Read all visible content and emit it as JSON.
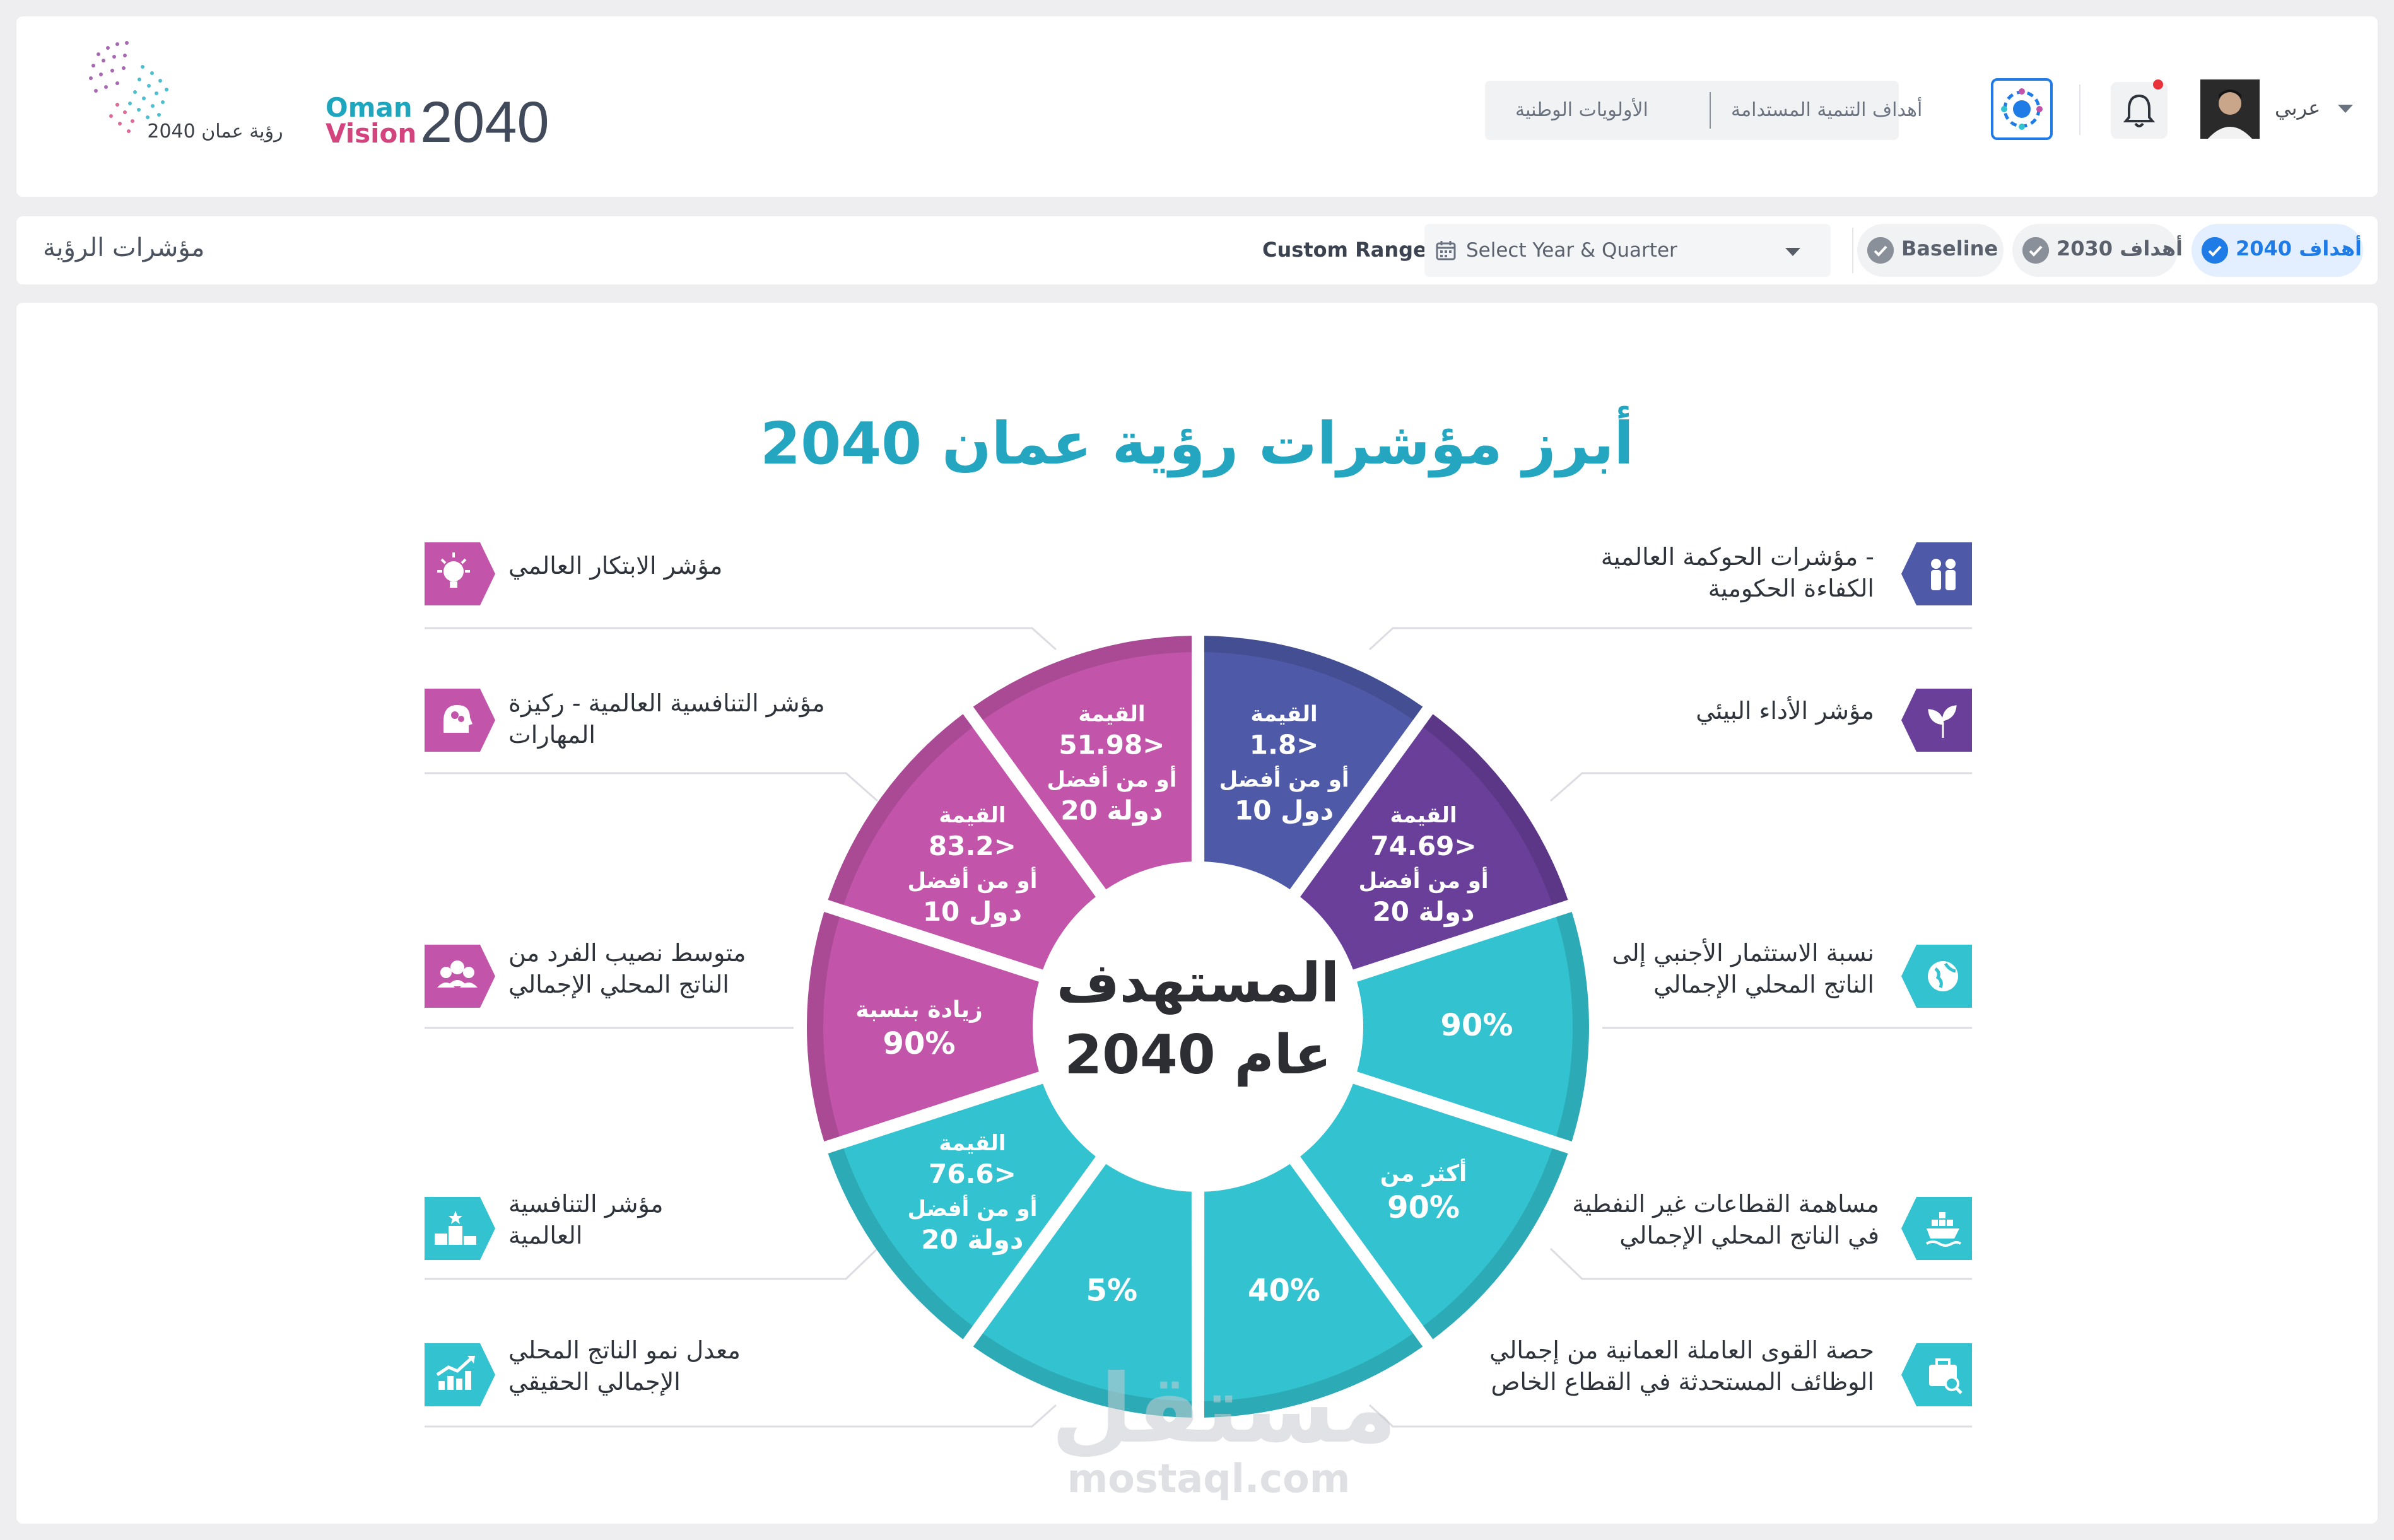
{
  "header": {
    "logo_text": "رؤية عمان 2040",
    "brand_oman": "Oman",
    "brand_vision": "Vision",
    "brand_year": "2040",
    "nav": {
      "national_priorities": "الأولويات الوطنية",
      "sdg": "أهداف التنمية المستدامة"
    },
    "settings_icon": "target-icon",
    "notifications_icon": "bell-icon",
    "language": "عربي"
  },
  "filter_bar": {
    "title": "مؤشرات الرؤية",
    "custom_range_label": "Custom Range",
    "select_placeholder": "Select Year & Quarter",
    "pills": [
      {
        "text": "Baseline",
        "active": false
      },
      {
        "text": "أهداف 2030",
        "active": false
      },
      {
        "text": "أهداف 2040",
        "active": true
      }
    ]
  },
  "main": {
    "title": "أبرز مؤشرات رؤية عمان 2040",
    "center": {
      "line1": "المستهدف",
      "line2": "عام 2040"
    },
    "colors": {
      "blue": "#4e5aa8",
      "purple": "#6a3f9a",
      "teal": "#33c3d0",
      "magenta": "#c255aa",
      "title": "#24a5c0"
    },
    "segments": [
      {
        "lines": [
          "القيمة",
          "1.8>",
          "أو من أفضل",
          "10 دول"
        ],
        "color": "#4e5aa8"
      },
      {
        "lines": [
          "القيمة",
          "74.69>",
          "أو من أفضل",
          "20 دولة"
        ],
        "color": "#6a3f9a"
      },
      {
        "lines": [
          "90%"
        ],
        "color": "#33c3d0"
      },
      {
        "lines": [
          "أكثر من",
          "90%"
        ],
        "color": "#33c3d0"
      },
      {
        "lines": [
          "40%"
        ],
        "color": "#33c3d0"
      },
      {
        "lines": [
          "5%"
        ],
        "color": "#33c3d0"
      },
      {
        "lines": [
          "القيمة",
          "76.6>",
          "أو من أفضل",
          "20 دولة"
        ],
        "color": "#33c3d0"
      },
      {
        "lines": [
          "زيادة بنسبة",
          "90%"
        ],
        "color": "#c255aa"
      },
      {
        "lines": [
          "القيمة",
          "83.2>",
          "أو من أفضل",
          "10 دول"
        ],
        "color": "#c255aa"
      },
      {
        "lines": [
          "القيمة",
          "51.98>",
          "أو من أفضل",
          "20 دولة"
        ],
        "color": "#c255aa"
      }
    ],
    "indicators_right": [
      {
        "label": [
          "مؤشرات الحوكمة العالمية -",
          "الكفاءة الحكومية"
        ],
        "icon": "people-icon",
        "color": "#4e5aa8"
      },
      {
        "label": [
          "مؤشر الأداء البيئي"
        ],
        "icon": "leaf-icon",
        "color": "#6a3f9a"
      },
      {
        "label": [
          "نسبة الاستثمار الأجنبي إلى",
          "الناتج المحلي الإجمالي"
        ],
        "icon": "globe-icon",
        "color": "#33c3d0"
      },
      {
        "label": [
          "مساهمة القطاعات غير النفطية",
          "في الناتج المحلي الإجمالي"
        ],
        "icon": "ship-icon",
        "color": "#33c3d0"
      },
      {
        "label": [
          "حصة القوى العاملة العمانية من إجمالي",
          "الوظائف المستحدثة في القطاع الخاص"
        ],
        "icon": "briefcase-search-icon",
        "color": "#33c3d0"
      }
    ],
    "indicators_left": [
      {
        "label": [
          "مؤشر الابتكار العالمي"
        ],
        "icon": "lightbulb-icon",
        "color": "#c255aa"
      },
      {
        "label": [
          "مؤشر التنافسية العالمية - ركيزة",
          "المهارات"
        ],
        "icon": "brain-head-icon",
        "color": "#c255aa"
      },
      {
        "label": [
          "متوسط نصيب الفرد من",
          "الناتج المحلي الإجمالي"
        ],
        "icon": "group-icon",
        "color": "#c255aa"
      },
      {
        "label": [
          "مؤشر التنافسية",
          "العالمية"
        ],
        "icon": "podium-icon",
        "color": "#33c3d0"
      },
      {
        "label": [
          "معدل نمو الناتج المحلي",
          "الإجمالي الحقيقي"
        ],
        "icon": "growth-chart-icon",
        "color": "#33c3d0"
      }
    ],
    "watermark": {
      "ar": "مستقل",
      "en": "mostaql.com"
    }
  }
}
